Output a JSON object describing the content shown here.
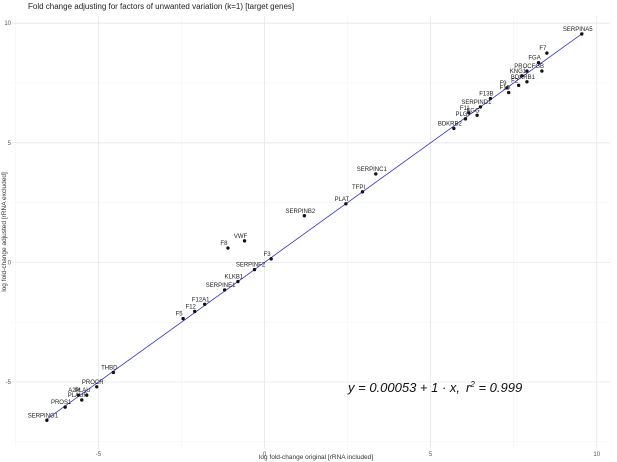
{
  "chart_data": {
    "type": "scatter",
    "title": "Fold change adjusting for factors of unwanted variation (k=1) [target genes]",
    "xlabel": "log fold-change original [rRNA included]",
    "ylabel": "log fold-change adjusted [rRNA excluded]",
    "xlim": [
      -7.6,
      10.4
    ],
    "ylim": [
      -7.8,
      10.3
    ],
    "x_ticks": [
      -5,
      0,
      5,
      10
    ],
    "y_ticks": [
      -5,
      0,
      5,
      10
    ],
    "grid": true,
    "fit_line": {
      "intercept": 0.00053,
      "slope": 1,
      "color": "#3333cc"
    },
    "equation": {
      "prefix": "y = 0.00053 + 1 · x,",
      "r2_label": "r",
      "r2_sup": "2",
      "r2_value": " = 0.999"
    },
    "point_color": "#111111",
    "points": [
      {
        "label": "SERPINA5",
        "x": 9.55,
        "y": 9.55
      },
      {
        "label": "F7",
        "x": 8.5,
        "y": 8.75
      },
      {
        "label": "FGA",
        "x": 8.25,
        "y": 8.35
      },
      {
        "label": "PROC",
        "x": 7.9,
        "y": 8.0
      },
      {
        "label": "FGB",
        "x": 8.35,
        "y": 8.0
      },
      {
        "label": "KNG1",
        "x": 7.75,
        "y": 7.8
      },
      {
        "label": "BDKRB1",
        "x": 7.9,
        "y": 7.55
      },
      {
        "label": "F9",
        "x": 7.3,
        "y": 7.3
      },
      {
        "label": "F2",
        "x": 7.65,
        "y": 7.4
      },
      {
        "label": "F10",
        "x": 7.35,
        "y": 7.1
      },
      {
        "label": "F13B",
        "x": 6.8,
        "y": 6.85
      },
      {
        "label": "SERPIND1",
        "x": 6.5,
        "y": 6.5
      },
      {
        "label": "F11",
        "x": 6.15,
        "y": 6.25
      },
      {
        "label": "FGG",
        "x": 6.4,
        "y": 6.15
      },
      {
        "label": "PLG",
        "x": 6.05,
        "y": 6.0
      },
      {
        "label": "BDKRB2",
        "x": 5.7,
        "y": 5.6
      },
      {
        "label": "SERPINC1",
        "x": 3.35,
        "y": 3.7
      },
      {
        "label": "TFPI",
        "x": 2.95,
        "y": 2.95
      },
      {
        "label": "PLAT",
        "x": 2.45,
        "y": 2.45
      },
      {
        "label": "SERPINB2",
        "x": 1.2,
        "y": 1.95
      },
      {
        "label": "VWF",
        "x": -0.6,
        "y": 0.9
      },
      {
        "label": "F8",
        "x": -1.1,
        "y": 0.6
      },
      {
        "label": "F3",
        "x": 0.2,
        "y": 0.15
      },
      {
        "label": "SERPINF2",
        "x": -0.3,
        "y": -0.3
      },
      {
        "label": "KLKB1",
        "x": -0.8,
        "y": -0.8
      },
      {
        "label": "SERPINE1",
        "x": -1.2,
        "y": -1.15
      },
      {
        "label": "F12A1",
        "x": -1.8,
        "y": -1.75
      },
      {
        "label": "F12",
        "x": -2.1,
        "y": -2.05
      },
      {
        "label": "F5",
        "x": -2.45,
        "y": -2.35
      },
      {
        "label": "THBD",
        "x": -4.55,
        "y": -4.6
      },
      {
        "label": "PROCR",
        "x": -5.05,
        "y": -5.2
      },
      {
        "label": "A2M",
        "x": -5.6,
        "y": -5.55
      },
      {
        "label": "PLAU",
        "x": -5.35,
        "y": -5.55
      },
      {
        "label": "PLAUR",
        "x": -5.5,
        "y": -5.75
      },
      {
        "label": "PROS1",
        "x": -6.0,
        "y": -6.05
      },
      {
        "label": "SERPING1",
        "x": -6.55,
        "y": -6.6
      }
    ]
  }
}
